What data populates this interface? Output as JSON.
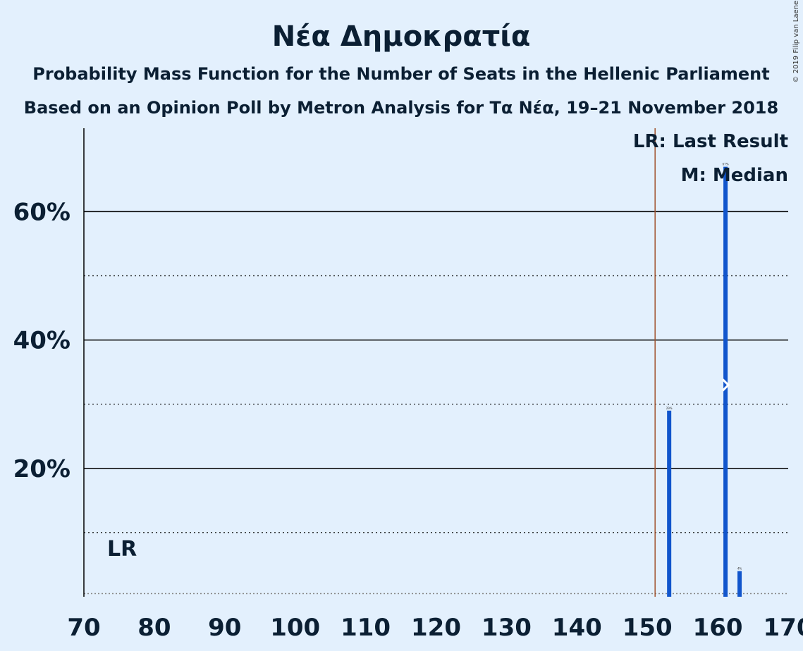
{
  "chart_data": {
    "type": "bar",
    "title": "Νέα Δημοκρατία",
    "subtitle_lines": [
      "Probability Mass Function for the Number of Seats in the Hellenic Parliament",
      "Based on an Opinion Poll by Metron Analysis for Τα Νέα, 19–21 November 2018"
    ],
    "xlim": [
      70,
      170
    ],
    "ylim": [
      0,
      73
    ],
    "x_ticks": [
      70,
      80,
      90,
      100,
      110,
      120,
      130,
      140,
      150,
      160,
      170
    ],
    "y_ticks_labeled": [
      20,
      40,
      60
    ],
    "y_ticks_labels": [
      "20%",
      "40%",
      "60%"
    ],
    "y_dotted": [
      10,
      30,
      50
    ],
    "baseline_dotted": 0.5,
    "last_result_seat": 151,
    "median_seat": 161,
    "median_value": 33,
    "lr_label": "LR",
    "median_marker": "M",
    "legend": [
      "LR: Last Result",
      "M: Median"
    ],
    "copyright": "© 2019 Filip van Laenen",
    "bars": [
      {
        "x": 153,
        "value": 29,
        "label": "29%"
      },
      {
        "x": 161,
        "value": 67,
        "label": "67%"
      },
      {
        "x": 163,
        "value": 4,
        "label": "4%"
      }
    ],
    "colors": {
      "background": "#e3f0fd",
      "bar": "#1155cc",
      "last_result_line": "#a0522d",
      "text": "#0b1f33"
    }
  }
}
